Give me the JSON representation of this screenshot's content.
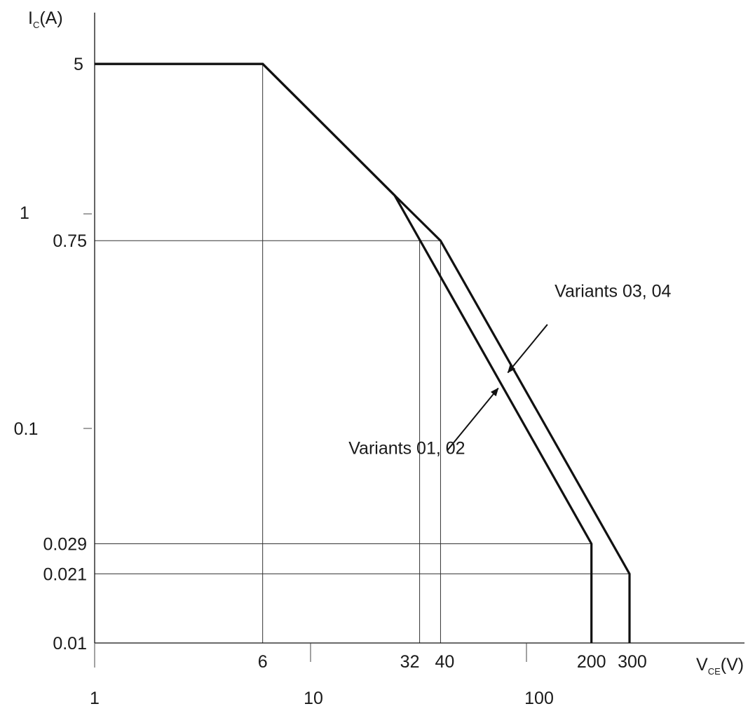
{
  "chart_data": {
    "type": "line",
    "x_scale": "log",
    "y_scale": "log",
    "xlim": [
      1,
      1000
    ],
    "ylim": [
      0.01,
      10
    ],
    "grid": false,
    "y_axis_title": {
      "main": "I",
      "sub": "C",
      "rest": "(A)"
    },
    "x_axis_title": {
      "main": "V",
      "sub": "CE",
      "rest": "(V)"
    },
    "y_tick_labels": [
      {
        "value": 5,
        "label": "5"
      },
      {
        "value": 1,
        "label": "1"
      },
      {
        "value": 0.75,
        "label": "0.75"
      },
      {
        "value": 0.1,
        "label": "0.1"
      },
      {
        "value": 0.029,
        "label": "0.029"
      },
      {
        "value": 0.021,
        "label": "0.021"
      },
      {
        "value": 0.01,
        "label": "0.01"
      }
    ],
    "y_tick_marks": [
      0.01,
      0.1,
      1,
      10
    ],
    "x_tick_labels_upper": [
      {
        "value": 6,
        "label": "6"
      },
      {
        "value": 32,
        "label": "32"
      },
      {
        "value": 40,
        "label": "40"
      },
      {
        "value": 200,
        "label": "200"
      },
      {
        "value": 300,
        "label": "300"
      }
    ],
    "x_tick_labels_lower": [
      {
        "value": 1,
        "label": "1"
      },
      {
        "value": 10,
        "label": "10"
      },
      {
        "value": 100,
        "label": "100"
      }
    ],
    "x_tick_marks": [
      1,
      10,
      100
    ],
    "reference_lines": [
      {
        "kind": "h",
        "y": 0.75,
        "x_from": 1,
        "x_to": 40
      },
      {
        "kind": "h",
        "y": 0.029,
        "x_from": 1,
        "x_to": 200
      },
      {
        "kind": "h",
        "y": 0.021,
        "x_from": 1,
        "x_to": 300
      },
      {
        "kind": "v",
        "x": 6,
        "y_from": 0.01,
        "y_to": 5
      },
      {
        "kind": "v",
        "x": 32,
        "y_from": 0.01,
        "y_to": 0.75
      },
      {
        "kind": "v",
        "x": 40,
        "y_from": 0.01,
        "y_to": 0.75
      }
    ],
    "series": [
      {
        "name": "Variants 03, 04",
        "points": [
          [
            1,
            5
          ],
          [
            6,
            5
          ],
          [
            24.5,
            1.22
          ],
          [
            40,
            0.75
          ],
          [
            300,
            0.021
          ],
          [
            300,
            0.01
          ]
        ]
      },
      {
        "name": "Variants 01, 02",
        "points": [
          [
            1,
            5
          ],
          [
            6,
            5
          ],
          [
            24.5,
            1.22
          ],
          [
            200,
            0.029
          ],
          [
            200,
            0.01
          ]
        ]
      }
    ],
    "annotations": [
      {
        "text": "Variants 03, 04",
        "text_at": [
          135,
          0.41
        ],
        "arrow_from": [
          125,
          0.305
        ],
        "arrow_to": [
          82,
          0.182
        ]
      },
      {
        "text": "Variants 01, 02",
        "text_at": [
          15,
          0.076
        ],
        "arrow_from": [
          43,
          0.079
        ],
        "arrow_to": [
          74,
          0.154
        ]
      }
    ]
  }
}
